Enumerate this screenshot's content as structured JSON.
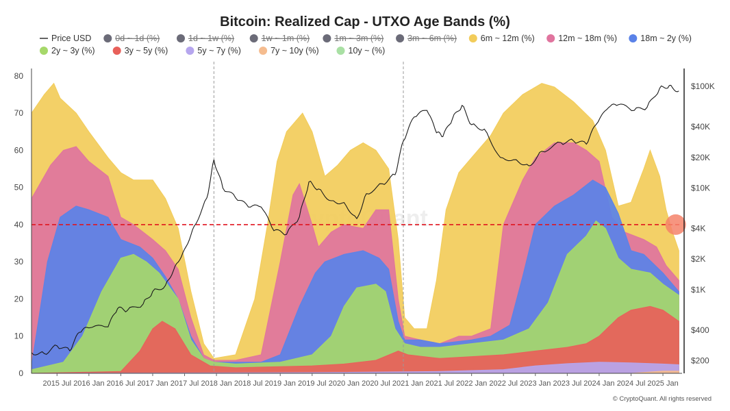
{
  "chart_data": {
    "type": "area",
    "title": "Bitcoin: Realized Cap - UTXO Age Bands (%)",
    "watermark": "CryptoQuant",
    "credit": "© CryptoQuant. All rights reserved",
    "y_left": {
      "ylim": [
        0,
        82
      ],
      "ticks": [
        "0",
        "10",
        "20",
        "30",
        "40",
        "50",
        "60",
        "70",
        "80"
      ],
      "tick_values": [
        0,
        10,
        20,
        30,
        40,
        50,
        60,
        70,
        80
      ]
    },
    "y_right": {
      "scale": "log",
      "ticks": [
        "$200",
        "$400",
        "$1K",
        "$2K",
        "$4K",
        "$10K",
        "$20K",
        "$40K",
        "$100K"
      ],
      "tick_values": [
        200,
        400,
        1000,
        2000,
        4000,
        10000,
        20000,
        40000,
        100000
      ]
    },
    "x_labels": [
      "2015 Jul",
      "2016 Jan",
      "2016 Jul",
      "2017 Jan",
      "2017 Jul",
      "2018 Jan",
      "2018 Jul",
      "2019 Jan",
      "2019 Jul",
      "2020 Jan",
      "2020 Jul",
      "2021 Jan",
      "2021 Jul",
      "2022 Jan",
      "2022 Jul",
      "2023 Jan",
      "2023 Jul",
      "2024 Jan",
      "2024 Jul",
      "2025 Jan"
    ],
    "x_label_dates": [
      2015.5,
      2016.0,
      2016.5,
      2017.0,
      2017.5,
      2018.0,
      2018.5,
      2019.0,
      2019.5,
      2020.0,
      2020.5,
      2021.0,
      2021.5,
      2022.0,
      2022.5,
      2023.0,
      2023.5,
      2024.0,
      2024.5,
      2025.0
    ],
    "x_range": [
      2015.1,
      2025.3
    ],
    "reference_line": {
      "value": 40,
      "color": "#e0141e",
      "style": "dashed"
    },
    "vertical_markers": [
      2017.96,
      2020.93
    ],
    "highlight_point": {
      "x": 2025.2,
      "y": 40,
      "color": "#f4826a"
    },
    "legend": [
      {
        "name": "Price USD",
        "color": "#222222",
        "visible": true,
        "kind": "line"
      },
      {
        "name": "0d ~ 1d (%)",
        "color": "#6b6b78",
        "visible": false
      },
      {
        "name": "1d ~ 1w (%)",
        "color": "#6b6b78",
        "visible": false
      },
      {
        "name": "1w ~ 1m (%)",
        "color": "#6b6b78",
        "visible": false
      },
      {
        "name": "1m ~ 3m (%)",
        "color": "#6b6b78",
        "visible": false
      },
      {
        "name": "3m ~ 6m (%)",
        "color": "#6b6b78",
        "visible": false
      },
      {
        "name": "6m ~ 12m (%)",
        "color": "#f2cc5a",
        "visible": true
      },
      {
        "name": "12m ~ 18m (%)",
        "color": "#e0749e",
        "visible": true
      },
      {
        "name": "18m ~ 2y (%)",
        "color": "#5a82e8",
        "visible": true
      },
      {
        "name": "2y ~ 3y (%)",
        "color": "#a6d86a",
        "visible": true
      },
      {
        "name": "3y ~ 5y (%)",
        "color": "#e8605a",
        "visible": true
      },
      {
        "name": "5y ~ 7y (%)",
        "color": "#b6a6ee",
        "visible": true
      },
      {
        "name": "7y ~ 10y (%)",
        "color": "#f5bc8f",
        "visible": true
      },
      {
        "name": "10y ~ (%)",
        "color": "#a9e0a4",
        "visible": true
      }
    ],
    "stack_order": [
      "7y ~ 10y (%)",
      "5y ~ 7y (%)",
      "3y ~ 5y (%)",
      "2y ~ 3y (%)",
      "18m ~ 2y (%)",
      "12m ~ 18m (%)",
      "6m ~ 12m (%)"
    ],
    "cumulative_series": {
      "7y ~ 10y (%)": [
        [
          2015.1,
          0
        ],
        [
          2024.5,
          0
        ],
        [
          2025.0,
          0.6
        ],
        [
          2025.25,
          0.6
        ]
      ],
      "5y ~ 7y (%)": [
        [
          2015.1,
          0
        ],
        [
          2019.5,
          0.2
        ],
        [
          2021.5,
          0.5
        ],
        [
          2022.5,
          1
        ],
        [
          2023.0,
          2
        ],
        [
          2023.5,
          2.6
        ],
        [
          2024.0,
          3
        ],
        [
          2024.5,
          2.8
        ],
        [
          2025.0,
          2.5
        ],
        [
          2025.25,
          2.3
        ]
      ],
      "3y ~ 5y (%)": [
        [
          2015.1,
          0
        ],
        [
          2016.5,
          0.5
        ],
        [
          2016.8,
          6
        ],
        [
          2017.0,
          12
        ],
        [
          2017.15,
          14
        ],
        [
          2017.35,
          12
        ],
        [
          2017.6,
          5
        ],
        [
          2017.9,
          2
        ],
        [
          2018.3,
          1.5
        ],
        [
          2019.0,
          1.8
        ],
        [
          2019.5,
          2
        ],
        [
          2020.0,
          2.5
        ],
        [
          2020.5,
          3.5
        ],
        [
          2020.85,
          6
        ],
        [
          2021.0,
          5
        ],
        [
          2021.5,
          4
        ],
        [
          2022.0,
          4.5
        ],
        [
          2022.5,
          5
        ],
        [
          2023.0,
          6
        ],
        [
          2023.5,
          7
        ],
        [
          2023.8,
          8
        ],
        [
          2024.0,
          10
        ],
        [
          2024.3,
          15
        ],
        [
          2024.5,
          17
        ],
        [
          2024.8,
          18
        ],
        [
          2025.0,
          17
        ],
        [
          2025.25,
          14
        ]
      ],
      "2y ~ 3y (%)": [
        [
          2015.1,
          1
        ],
        [
          2015.6,
          3
        ],
        [
          2015.9,
          10
        ],
        [
          2016.2,
          22
        ],
        [
          2016.5,
          31
        ],
        [
          2016.7,
          32
        ],
        [
          2016.9,
          30
        ],
        [
          2017.1,
          27
        ],
        [
          2017.4,
          20
        ],
        [
          2017.6,
          9
        ],
        [
          2017.8,
          4
        ],
        [
          2017.96,
          3
        ],
        [
          2018.3,
          2.5
        ],
        [
          2019.0,
          3
        ],
        [
          2019.5,
          5
        ],
        [
          2019.8,
          10
        ],
        [
          2020.0,
          18
        ],
        [
          2020.2,
          23
        ],
        [
          2020.5,
          24
        ],
        [
          2020.65,
          22
        ],
        [
          2020.8,
          12
        ],
        [
          2020.95,
          8
        ],
        [
          2021.2,
          7
        ],
        [
          2021.5,
          7
        ],
        [
          2022.0,
          8
        ],
        [
          2022.5,
          9
        ],
        [
          2022.9,
          12
        ],
        [
          2023.2,
          19
        ],
        [
          2023.5,
          32
        ],
        [
          2023.8,
          37
        ],
        [
          2023.95,
          41
        ],
        [
          2024.1,
          39
        ],
        [
          2024.3,
          31
        ],
        [
          2024.5,
          28
        ],
        [
          2024.8,
          27
        ],
        [
          2025.0,
          24
        ],
        [
          2025.25,
          21
        ]
      ],
      "18m ~ 2y (%)": [
        [
          2015.1,
          2
        ],
        [
          2015.35,
          30
        ],
        [
          2015.55,
          42
        ],
        [
          2015.8,
          45
        ],
        [
          2016.0,
          44
        ],
        [
          2016.3,
          42
        ],
        [
          2016.5,
          36
        ],
        [
          2016.8,
          34
        ],
        [
          2017.0,
          31
        ],
        [
          2017.2,
          26
        ],
        [
          2017.4,
          20
        ],
        [
          2017.6,
          10
        ],
        [
          2017.8,
          4
        ],
        [
          2017.96,
          3
        ],
        [
          2018.3,
          3
        ],
        [
          2018.7,
          3
        ],
        [
          2019.0,
          5
        ],
        [
          2019.3,
          18
        ],
        [
          2019.55,
          27
        ],
        [
          2019.7,
          30
        ],
        [
          2020.0,
          32
        ],
        [
          2020.3,
          33
        ],
        [
          2020.55,
          31
        ],
        [
          2020.7,
          28
        ],
        [
          2020.85,
          14
        ],
        [
          2020.95,
          9
        ],
        [
          2021.2,
          9
        ],
        [
          2021.5,
          8
        ],
        [
          2022.0,
          9
        ],
        [
          2022.3,
          10
        ],
        [
          2022.6,
          13
        ],
        [
          2022.8,
          26
        ],
        [
          2023.0,
          40
        ],
        [
          2023.3,
          45
        ],
        [
          2023.6,
          48
        ],
        [
          2023.9,
          52
        ],
        [
          2024.1,
          50
        ],
        [
          2024.3,
          43
        ],
        [
          2024.5,
          33
        ],
        [
          2024.7,
          32
        ],
        [
          2025.0,
          27
        ],
        [
          2025.25,
          22
        ]
      ],
      "12m ~ 18m (%)": [
        [
          2015.1,
          47
        ],
        [
          2015.4,
          56
        ],
        [
          2015.6,
          60
        ],
        [
          2015.8,
          61
        ],
        [
          2016.0,
          57
        ],
        [
          2016.3,
          53
        ],
        [
          2016.5,
          42
        ],
        [
          2016.7,
          40
        ],
        [
          2017.0,
          36
        ],
        [
          2017.2,
          33
        ],
        [
          2017.4,
          28
        ],
        [
          2017.6,
          15
        ],
        [
          2017.8,
          5
        ],
        [
          2017.96,
          3.5
        ],
        [
          2018.3,
          3.5
        ],
        [
          2018.7,
          5
        ],
        [
          2019.0,
          30
        ],
        [
          2019.2,
          48
        ],
        [
          2019.3,
          51
        ],
        [
          2019.5,
          40
        ],
        [
          2019.6,
          34
        ],
        [
          2019.8,
          38
        ],
        [
          2020.0,
          40
        ],
        [
          2020.3,
          39
        ],
        [
          2020.5,
          44
        ],
        [
          2020.7,
          44
        ],
        [
          2020.85,
          20
        ],
        [
          2020.95,
          10
        ],
        [
          2021.2,
          9
        ],
        [
          2021.5,
          8
        ],
        [
          2021.8,
          10
        ],
        [
          2022.0,
          10
        ],
        [
          2022.3,
          12
        ],
        [
          2022.5,
          40
        ],
        [
          2022.8,
          52
        ],
        [
          2023.0,
          58
        ],
        [
          2023.3,
          62
        ],
        [
          2023.6,
          62
        ],
        [
          2023.8,
          60
        ],
        [
          2024.0,
          57
        ],
        [
          2024.2,
          42
        ],
        [
          2024.4,
          38
        ],
        [
          2024.7,
          36
        ],
        [
          2024.9,
          34
        ],
        [
          2025.05,
          29
        ],
        [
          2025.25,
          25
        ]
      ],
      "6m ~ 12m (%)": [
        [
          2015.1,
          70
        ],
        [
          2015.3,
          75
        ],
        [
          2015.45,
          78
        ],
        [
          2015.55,
          74
        ],
        [
          2015.8,
          70
        ],
        [
          2016.0,
          65
        ],
        [
          2016.3,
          58
        ],
        [
          2016.5,
          54
        ],
        [
          2016.7,
          52
        ],
        [
          2017.0,
          52
        ],
        [
          2017.2,
          47
        ],
        [
          2017.4,
          39
        ],
        [
          2017.6,
          22
        ],
        [
          2017.8,
          8
        ],
        [
          2017.96,
          4
        ],
        [
          2018.3,
          5
        ],
        [
          2018.6,
          20
        ],
        [
          2018.8,
          40
        ],
        [
          2018.95,
          57
        ],
        [
          2019.1,
          65
        ],
        [
          2019.35,
          70
        ],
        [
          2019.5,
          65
        ],
        [
          2019.7,
          53
        ],
        [
          2019.9,
          56
        ],
        [
          2020.1,
          60
        ],
        [
          2020.3,
          62
        ],
        [
          2020.5,
          60
        ],
        [
          2020.7,
          55
        ],
        [
          2020.85,
          36
        ],
        [
          2020.95,
          15
        ],
        [
          2021.1,
          12
        ],
        [
          2021.3,
          12
        ],
        [
          2021.45,
          25
        ],
        [
          2021.6,
          44
        ],
        [
          2021.8,
          54
        ],
        [
          2022.0,
          58
        ],
        [
          2022.3,
          64
        ],
        [
          2022.5,
          70
        ],
        [
          2022.8,
          75
        ],
        [
          2023.1,
          78
        ],
        [
          2023.3,
          77
        ],
        [
          2023.6,
          73
        ],
        [
          2023.9,
          68
        ],
        [
          2024.1,
          60
        ],
        [
          2024.3,
          45
        ],
        [
          2024.5,
          46
        ],
        [
          2024.7,
          55
        ],
        [
          2024.8,
          60
        ],
        [
          2024.95,
          53
        ],
        [
          2025.05,
          44
        ],
        [
          2025.15,
          38
        ],
        [
          2025.25,
          33
        ]
      ]
    },
    "price_series": [
      [
        2015.1,
        240
      ],
      [
        2015.3,
        235
      ],
      [
        2015.5,
        280
      ],
      [
        2015.7,
        250
      ],
      [
        2015.85,
        380
      ],
      [
        2016.0,
        420
      ],
      [
        2016.3,
        430
      ],
      [
        2016.45,
        650
      ],
      [
        2016.6,
        620
      ],
      [
        2016.85,
        720
      ],
      [
        2017.0,
        960
      ],
      [
        2017.2,
        1100
      ],
      [
        2017.35,
        1700
      ],
      [
        2017.5,
        2500
      ],
      [
        2017.65,
        4200
      ],
      [
        2017.85,
        8000
      ],
      [
        2017.96,
        19000
      ],
      [
        2018.1,
        10000
      ],
      [
        2018.3,
        8000
      ],
      [
        2018.5,
        6500
      ],
      [
        2018.7,
        6500
      ],
      [
        2018.9,
        3800
      ],
      [
        2019.1,
        3500
      ],
      [
        2019.3,
        5200
      ],
      [
        2019.45,
        11500
      ],
      [
        2019.6,
        9800
      ],
      [
        2019.8,
        7500
      ],
      [
        2020.0,
        7200
      ],
      [
        2020.2,
        5000
      ],
      [
        2020.35,
        8800
      ],
      [
        2020.6,
        11000
      ],
      [
        2020.8,
        13500
      ],
      [
        2020.93,
        29000
      ],
      [
        2021.1,
        50000
      ],
      [
        2021.3,
        58000
      ],
      [
        2021.45,
        35000
      ],
      [
        2021.55,
        32000
      ],
      [
        2021.7,
        48000
      ],
      [
        2021.85,
        65000
      ],
      [
        2022.0,
        42000
      ],
      [
        2022.2,
        38000
      ],
      [
        2022.45,
        20000
      ],
      [
        2022.7,
        19000
      ],
      [
        2022.9,
        16500
      ],
      [
        2023.1,
        23000
      ],
      [
        2023.4,
        28000
      ],
      [
        2023.6,
        29000
      ],
      [
        2023.8,
        27000
      ],
      [
        2023.95,
        42000
      ],
      [
        2024.15,
        62000
      ],
      [
        2024.3,
        66000
      ],
      [
        2024.55,
        58000
      ],
      [
        2024.75,
        62000
      ],
      [
        2024.95,
        96000
      ],
      [
        2025.1,
        102000
      ],
      [
        2025.25,
        90000
      ]
    ]
  }
}
